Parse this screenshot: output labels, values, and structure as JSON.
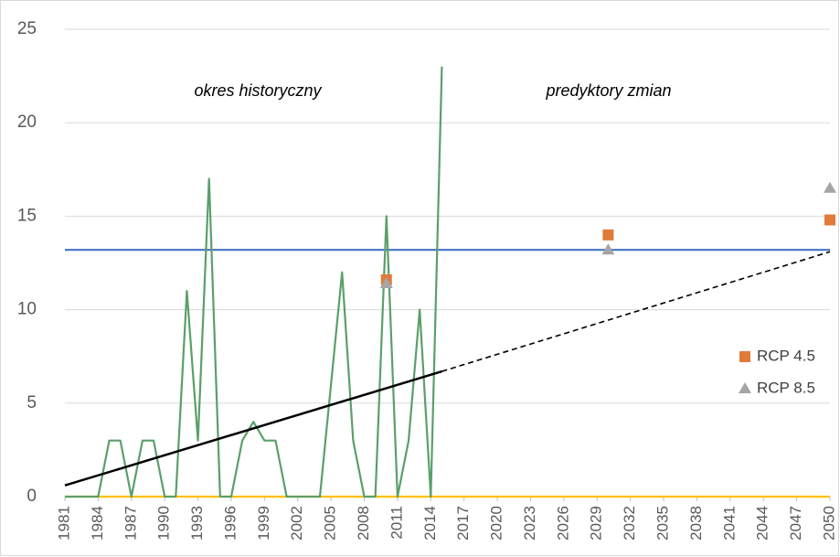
{
  "chart_data": {
    "type": "line",
    "annotations": [
      "okres historyczny",
      "predyktory zmian"
    ],
    "xlim": [
      1981,
      2050
    ],
    "xticks": [
      1981,
      1984,
      1987,
      1990,
      1993,
      1996,
      1999,
      2002,
      2005,
      2008,
      2011,
      2014,
      2017,
      2020,
      2023,
      2026,
      2029,
      2032,
      2035,
      2038,
      2041,
      2044,
      2047,
      2050
    ],
    "ylim": [
      0,
      25
    ],
    "yticks": [
      0,
      5,
      10,
      15,
      20,
      25
    ],
    "grid": true,
    "legend": "right",
    "series": [
      {
        "color": "#ffc000",
        "kind": "line",
        "x": [
          1981,
          2050
        ],
        "values": [
          0,
          0
        ]
      },
      {
        "color": "#4472c4",
        "kind": "line",
        "x": [
          1981,
          2050
        ],
        "values": [
          13.2,
          13.2
        ]
      },
      {
        "color": "#5b9f6a",
        "kind": "line",
        "x": [
          1981,
          1982,
          1983,
          1984,
          1985,
          1986,
          1987,
          1988,
          1989,
          1990,
          1991,
          1992,
          1993,
          1994,
          1995,
          1996,
          1997,
          1998,
          1999,
          2000,
          2001,
          2002,
          2003,
          2004,
          2005,
          2006,
          2007,
          2008,
          2009,
          2010,
          2011,
          2012,
          2013,
          2014,
          2015
        ],
        "values": [
          0,
          0,
          0,
          0,
          3,
          3,
          0,
          3,
          3,
          0,
          0,
          11,
          3,
          17,
          0,
          0,
          3,
          4,
          3,
          3,
          0,
          0,
          0,
          0,
          6,
          12,
          3,
          0,
          0,
          15,
          0,
          3,
          10,
          0,
          23
        ]
      },
      {
        "color": "#000000",
        "kind": "line",
        "x": [
          1981,
          2015
        ],
        "values": [
          0.6,
          6.7
        ]
      },
      {
        "color": "#000000",
        "kind": "line",
        "dashed": true,
        "x": [
          2015,
          2050
        ],
        "values": [
          6.7,
          13.1
        ]
      },
      {
        "name": "RCP 4.5",
        "color": "#e07b39",
        "kind": "marker",
        "marker": "square",
        "x": [
          2010,
          2030,
          2050
        ],
        "values": [
          11.6,
          14.0,
          14.8
        ]
      },
      {
        "name": "RCP 8.5",
        "color": "#a5a5a5",
        "kind": "marker",
        "marker": "triangle",
        "x": [
          2010,
          2030,
          2050
        ],
        "values": [
          11.4,
          13.2,
          16.5
        ]
      }
    ]
  }
}
